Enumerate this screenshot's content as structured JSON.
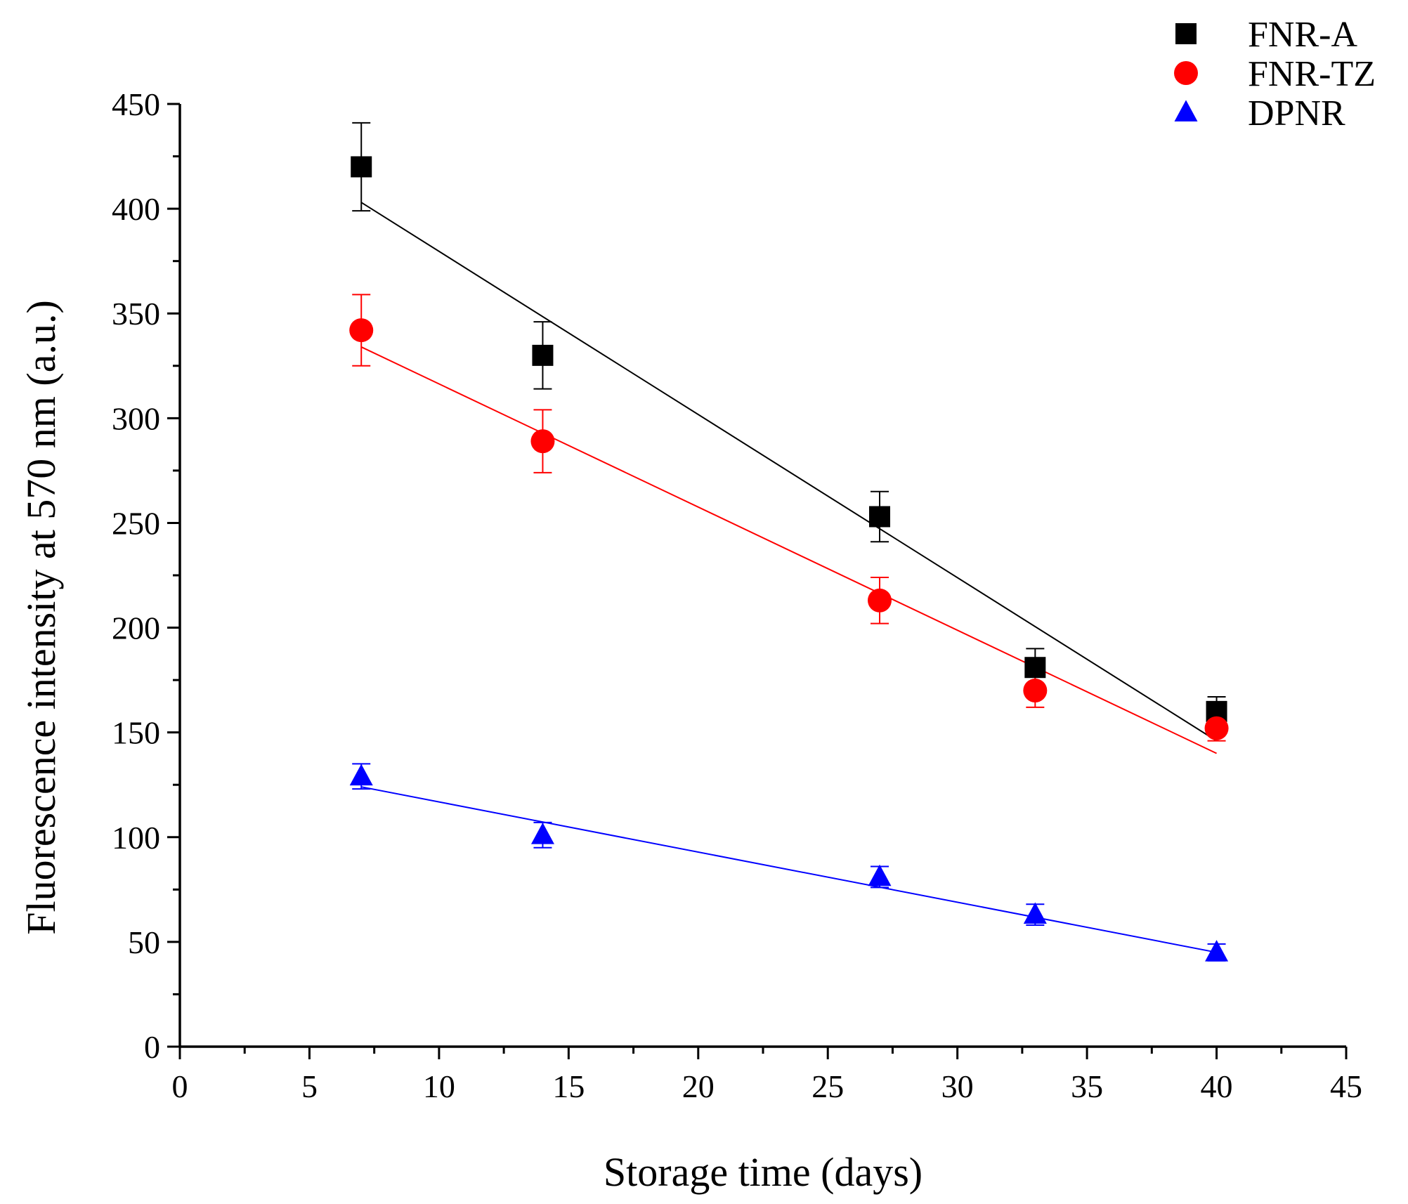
{
  "chart_data": {
    "type": "scatter",
    "title": "",
    "xlabel": "Storage time (days)",
    "ylabel": "Fluorescence intensity at 570 nm (a.u.)",
    "xlim": [
      0,
      45
    ],
    "ylim": [
      0,
      450
    ],
    "x_major_ticks": [
      0,
      5,
      10,
      15,
      20,
      25,
      30,
      35,
      40,
      45
    ],
    "x_tick_labels": [
      "0",
      "5",
      "10",
      "15",
      "20",
      "25",
      "30",
      "35",
      "40",
      "45"
    ],
    "y_major_ticks": [
      0,
      50,
      100,
      150,
      200,
      250,
      300,
      350,
      400,
      450
    ],
    "y_tick_labels": [
      "0",
      "50",
      "100",
      "150",
      "200",
      "250",
      "300",
      "350",
      "400",
      "450"
    ],
    "grid": false,
    "legend_position": "top-right",
    "series": [
      {
        "name": "FNR-A",
        "marker": "square",
        "color": "#000000",
        "x": [
          7,
          14,
          27,
          33,
          40
        ],
        "y": [
          420,
          330,
          253,
          181,
          160
        ],
        "error": [
          21,
          16,
          12,
          9,
          7
        ],
        "fit": {
          "x": [
            7,
            40
          ],
          "y": [
            403,
            146
          ]
        }
      },
      {
        "name": "FNR-TZ",
        "marker": "circle",
        "color": "#ff0000",
        "x": [
          7,
          14,
          27,
          33,
          40
        ],
        "y": [
          342,
          289,
          213,
          170,
          152
        ],
        "error": [
          17,
          15,
          11,
          8,
          6
        ],
        "fit": {
          "x": [
            7,
            40
          ],
          "y": [
            334,
            140
          ]
        }
      },
      {
        "name": "DPNR",
        "marker": "triangle",
        "color": "#0000ff",
        "x": [
          7,
          14,
          27,
          33,
          40
        ],
        "y": [
          129,
          101,
          81,
          63,
          45
        ],
        "error": [
          6,
          6,
          5,
          5,
          4
        ],
        "fit": {
          "x": [
            7,
            40
          ],
          "y": [
            124,
            45
          ]
        }
      }
    ]
  }
}
